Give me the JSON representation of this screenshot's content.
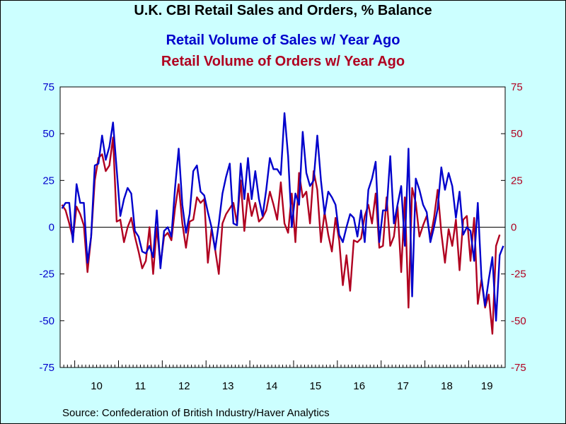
{
  "page": {
    "source": "Source:  Confederation of British Industry/Haver Analytics",
    "background_color": "#ccffff"
  },
  "chart_data": {
    "type": "line",
    "title": "U.K. CBI Retail Sales and Orders, % Balance",
    "ylim": [
      -75,
      75
    ],
    "yticks": [
      75,
      50,
      25,
      0,
      -25,
      -50,
      -75
    ],
    "ytick_labels": [
      "75",
      "50",
      "25",
      "0",
      "-25",
      "-50",
      "-75"
    ],
    "x_start": "2009-09",
    "xlim": [
      "2009-09",
      "2019-10"
    ],
    "xtick_labels": [
      "10",
      "11",
      "12",
      "13",
      "14",
      "15",
      "16",
      "17",
      "18",
      "19"
    ],
    "zero_line": true,
    "grid": false,
    "series": [
      {
        "name": "Retail Volume of Sales w/ Year Ago",
        "color": "#0000cc",
        "axis": "left",
        "values": [
          10,
          13,
          13,
          -8,
          23,
          13,
          13,
          -19,
          -5,
          33,
          34,
          49,
          36,
          43,
          56,
          31,
          6,
          15,
          21,
          18,
          -2,
          -5,
          -13,
          -14,
          -10,
          -16,
          9,
          -22,
          -2,
          0,
          -5,
          21,
          42,
          12,
          -3,
          7,
          30,
          33,
          19,
          17,
          8,
          0,
          -12,
          2,
          18,
          27,
          34,
          2,
          1,
          34,
          15,
          37,
          15,
          30,
          15,
          6,
          20,
          37,
          31,
          31,
          28,
          61,
          38,
          0,
          18,
          12,
          51,
          29,
          22,
          25,
          49,
          25,
          7,
          19,
          16,
          12,
          -4,
          -8,
          0,
          7,
          5,
          -5,
          9,
          -8,
          20,
          26,
          35,
          -8,
          9,
          9,
          38,
          2,
          12,
          22,
          -10,
          42,
          -37,
          26,
          20,
          12,
          8,
          -8,
          0,
          10,
          32,
          20,
          29,
          22,
          5,
          19,
          -4,
          0,
          -2,
          -18,
          13,
          -27,
          -42,
          -28,
          -16,
          -50,
          -15,
          -10
        ]
      },
      {
        "name": "Retail Volume of Orders w/ Year Ago",
        "color": "#b00020",
        "axis": "right",
        "values": [
          12,
          9,
          2,
          -6,
          11,
          7,
          1,
          -24,
          -5,
          25,
          37,
          39,
          30,
          33,
          48,
          3,
          4,
          -8,
          0,
          5,
          -5,
          -13,
          -22,
          -18,
          0,
          -25,
          0,
          -20,
          -5,
          -3,
          -7,
          10,
          23,
          2,
          -11,
          3,
          4,
          16,
          13,
          15,
          -19,
          -1,
          -12,
          -25,
          2,
          7,
          10,
          13,
          2,
          25,
          -2,
          18,
          6,
          13,
          3,
          5,
          9,
          19,
          12,
          4,
          24,
          2,
          -3,
          18,
          -8,
          29,
          16,
          19,
          2,
          30,
          20,
          -8,
          8,
          -4,
          -13,
          5,
          -7,
          -31,
          -15,
          -34,
          -7,
          -8,
          -6,
          6,
          12,
          2,
          18,
          -11,
          -10,
          16,
          -10,
          -5,
          11,
          -24,
          16,
          -43,
          21,
          13,
          -5,
          1,
          6,
          -6,
          5,
          20,
          -3,
          -19,
          -1,
          -10,
          4,
          -23,
          4,
          6,
          -18,
          5,
          -41,
          -28,
          -43,
          -36,
          -57,
          -10,
          -4
        ]
      }
    ]
  }
}
